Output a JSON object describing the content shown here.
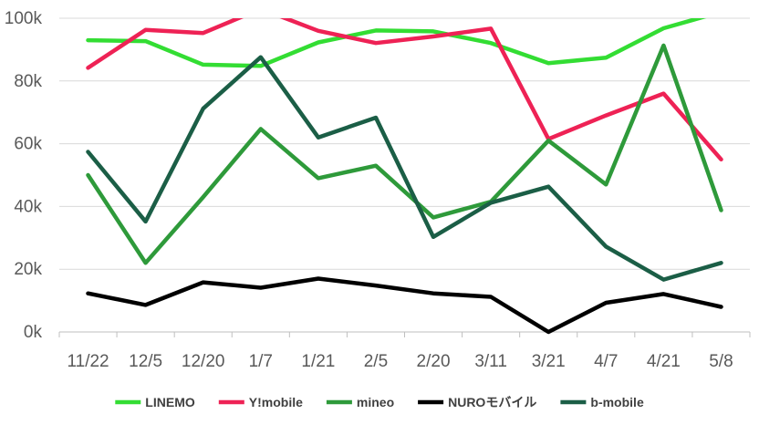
{
  "chart_data": {
    "type": "line",
    "categories": [
      "11/22",
      "12/5",
      "12/20",
      "1/7",
      "1/21",
      "2/5",
      "2/20",
      "3/11",
      "3/21",
      "4/7",
      "4/21",
      "5/8"
    ],
    "ylim": [
      0,
      100000
    ],
    "yticks": [
      {
        "value": 0,
        "label": "0k"
      },
      {
        "value": 20000,
        "label": "20k"
      },
      {
        "value": 40000,
        "label": "40k"
      },
      {
        "value": 60000,
        "label": "60k"
      },
      {
        "value": 80000,
        "label": "80k"
      },
      {
        "value": 100000,
        "label": "100k"
      }
    ],
    "grid": true,
    "legend_position": "bottom",
    "series": [
      {
        "name": "LINEMO",
        "color": "#33dd33",
        "values": [
          93000,
          92700,
          85200,
          84800,
          92300,
          96100,
          95800,
          92100,
          85700,
          87400,
          96800,
          102000
        ]
      },
      {
        "name": "Y!mobile",
        "color": "#ee2255",
        "values": [
          84200,
          96300,
          95300,
          103000,
          96000,
          92100,
          94200,
          96700,
          61500,
          69000,
          76000,
          55000
        ]
      },
      {
        "name": "mineo",
        "color": "#2e9a3a",
        "values": [
          50000,
          22000,
          43000,
          64700,
          49000,
          53000,
          36500,
          41500,
          61000,
          47000,
          91300,
          38800
        ]
      },
      {
        "name": "NUROモバイル",
        "color": "#000000",
        "values": [
          12300,
          8600,
          15800,
          14100,
          17000,
          14800,
          12300,
          11200,
          0,
          9300,
          12100,
          8000
        ]
      },
      {
        "name": "b-mobile",
        "color": "#1b5e46",
        "values": [
          57400,
          35200,
          71200,
          87600,
          62000,
          68300,
          30300,
          41200,
          46300,
          27200,
          16700,
          22000
        ]
      }
    ]
  }
}
